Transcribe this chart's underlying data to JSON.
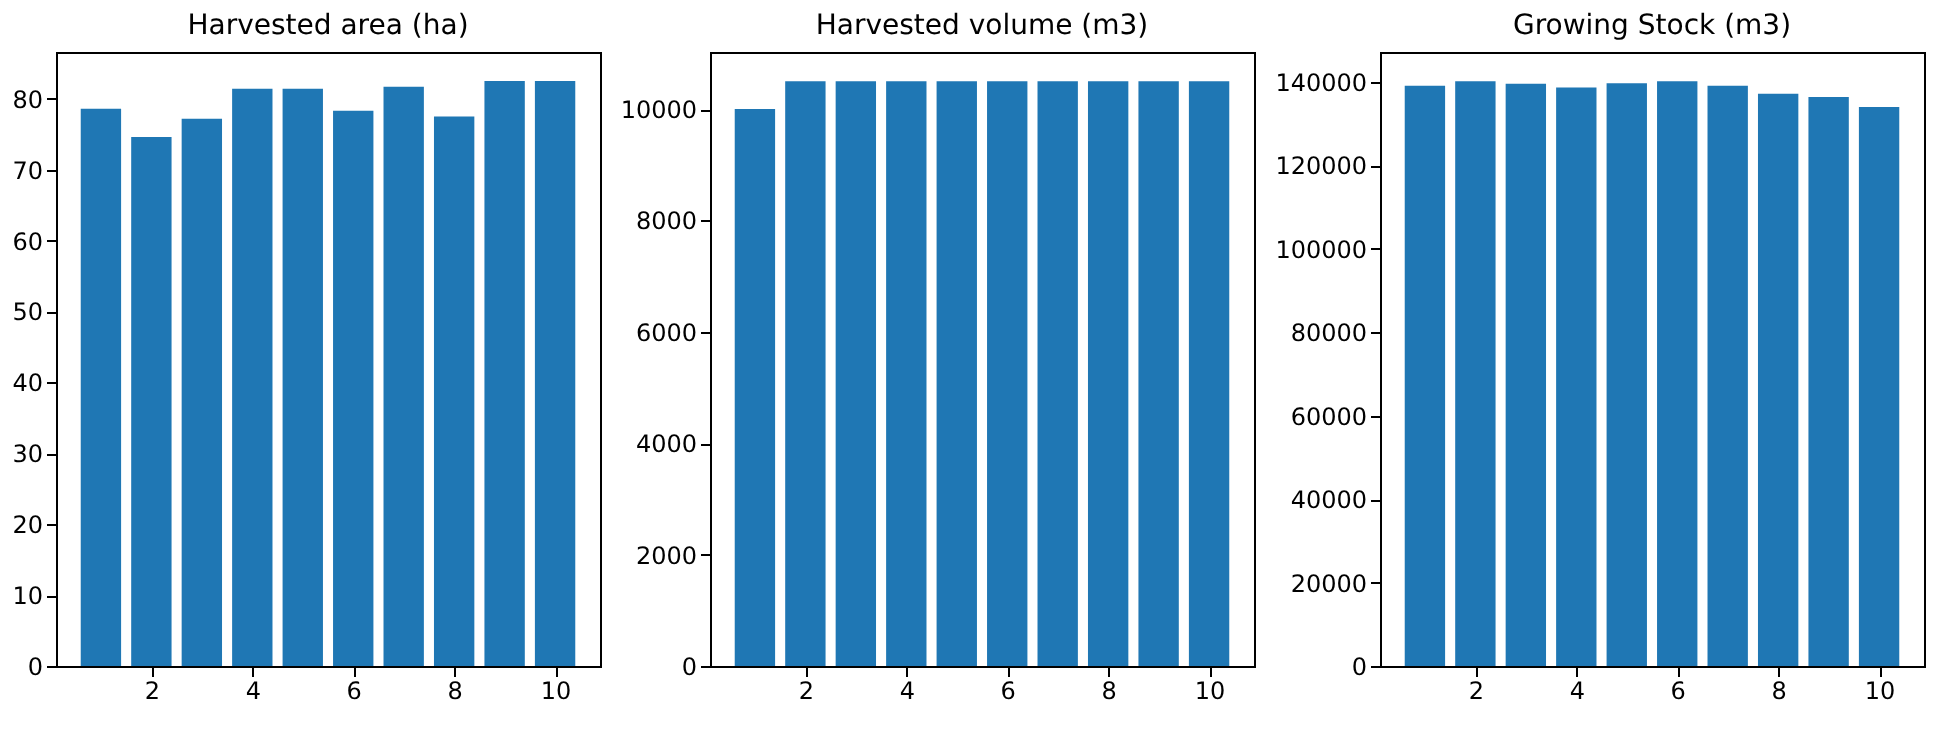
{
  "chart_data": [
    {
      "type": "bar",
      "title": "Harvested area (ha)",
      "x": [
        1,
        2,
        3,
        4,
        5,
        6,
        7,
        8,
        9,
        10
      ],
      "values": [
        78.6,
        74.6,
        77.2,
        81.4,
        81.4,
        78.3,
        81.7,
        77.5,
        82.5,
        82.5
      ],
      "color": "#1f77b4",
      "xlim": [
        0.11,
        10.89
      ],
      "xticks": [
        2,
        4,
        6,
        8,
        10
      ],
      "ylim": [
        0,
        86.6
      ],
      "yticks": [
        0,
        10,
        20,
        30,
        40,
        50,
        60,
        70,
        80
      ],
      "grid": false
    },
    {
      "type": "bar",
      "title": "Harvested volume (m3)",
      "x": [
        1,
        2,
        3,
        4,
        5,
        6,
        7,
        8,
        9,
        10
      ],
      "values": [
        10000,
        10500,
        10500,
        10500,
        10500,
        10500,
        10500,
        10500,
        10500,
        10500
      ],
      "color": "#1f77b4",
      "xlim": [
        0.11,
        10.89
      ],
      "xticks": [
        2,
        4,
        6,
        8,
        10
      ],
      "ylim": [
        0,
        11025
      ],
      "yticks": [
        0,
        2000,
        4000,
        6000,
        8000,
        10000
      ],
      "grid": false
    },
    {
      "type": "bar",
      "title": "Growing Stock (m3)",
      "x": [
        1,
        2,
        3,
        4,
        5,
        6,
        7,
        8,
        9,
        10
      ],
      "values": [
        139100,
        140200,
        139600,
        138700,
        139700,
        140200,
        139100,
        137200,
        136400,
        134000
      ],
      "color": "#1f77b4",
      "xlim": [
        0.11,
        10.89
      ],
      "xticks": [
        2,
        4,
        6,
        8,
        10
      ],
      "ylim": [
        0,
        147210
      ],
      "yticks": [
        0,
        20000,
        40000,
        60000,
        80000,
        100000,
        120000,
        140000
      ],
      "grid": false
    }
  ]
}
